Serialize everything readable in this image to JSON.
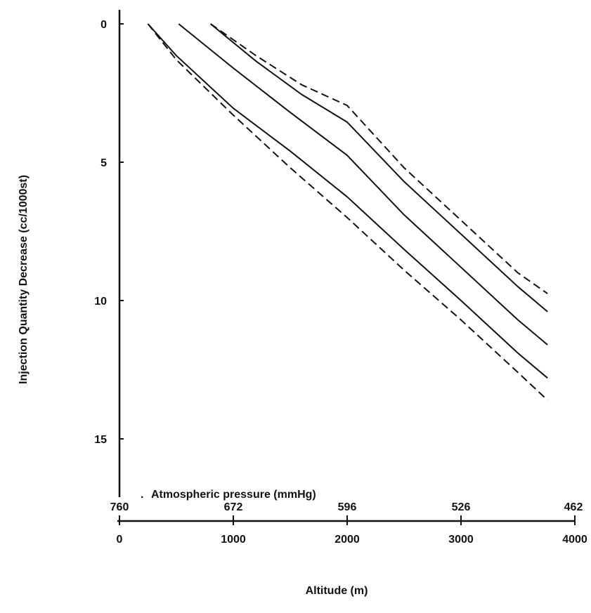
{
  "chart_data": {
    "type": "line",
    "title": "",
    "xlabel": "Altitude (m)",
    "ylabel": "Injection Quantity Decrease (cc/1000st)",
    "xlim": [
      0,
      4000
    ],
    "ylim": [
      0,
      17.5
    ],
    "y_inverted": true,
    "grid": false,
    "x_ticks": [
      0,
      1000,
      2000,
      3000,
      4000
    ],
    "x_tick_labels": [
      "0",
      "1000",
      "2000",
      "3000",
      "4000"
    ],
    "y_ticks": [
      0,
      5,
      10,
      15
    ],
    "y_tick_labels": [
      "0",
      "5",
      "10",
      "15"
    ],
    "secondary_x_axis": {
      "label": "Atmospheric pressure (mmHg)",
      "positions": [
        0,
        1000,
        2000,
        3000,
        4000
      ],
      "tick_labels": [
        "760",
        "672",
        "596",
        "526",
        "462"
      ]
    },
    "series": [
      {
        "style": "dashed",
        "x": [
          250,
          500,
          1000,
          1500,
          2000,
          2500,
          3000,
          3500,
          3760
        ],
        "y": [
          0,
          1.3,
          3.3,
          5.2,
          7.0,
          8.9,
          10.7,
          12.6,
          13.6
        ]
      },
      {
        "style": "solid",
        "x": [
          250,
          500,
          1000,
          1500,
          2000,
          2500,
          3000,
          3500,
          3760
        ],
        "y": [
          0,
          1.15,
          3.05,
          4.6,
          6.25,
          8.15,
          10.0,
          11.9,
          12.8
        ]
      },
      {
        "style": "solid",
        "x": [
          520,
          1000,
          1500,
          2000,
          2500,
          3000,
          3500,
          3760
        ],
        "y": [
          0,
          1.6,
          3.2,
          4.75,
          6.9,
          8.8,
          10.7,
          11.6
        ]
      },
      {
        "style": "solid",
        "x": [
          800,
          1200,
          1600,
          2000,
          2500,
          3000,
          3500,
          3760
        ],
        "y": [
          0,
          1.35,
          2.55,
          3.55,
          5.7,
          7.6,
          9.5,
          10.4
        ]
      },
      {
        "style": "dashed",
        "x": [
          800,
          1200,
          1600,
          2000,
          2500,
          3000,
          3500,
          3760
        ],
        "y": [
          0,
          1.15,
          2.2,
          2.95,
          5.2,
          7.1,
          9.0,
          9.75
        ]
      }
    ]
  }
}
